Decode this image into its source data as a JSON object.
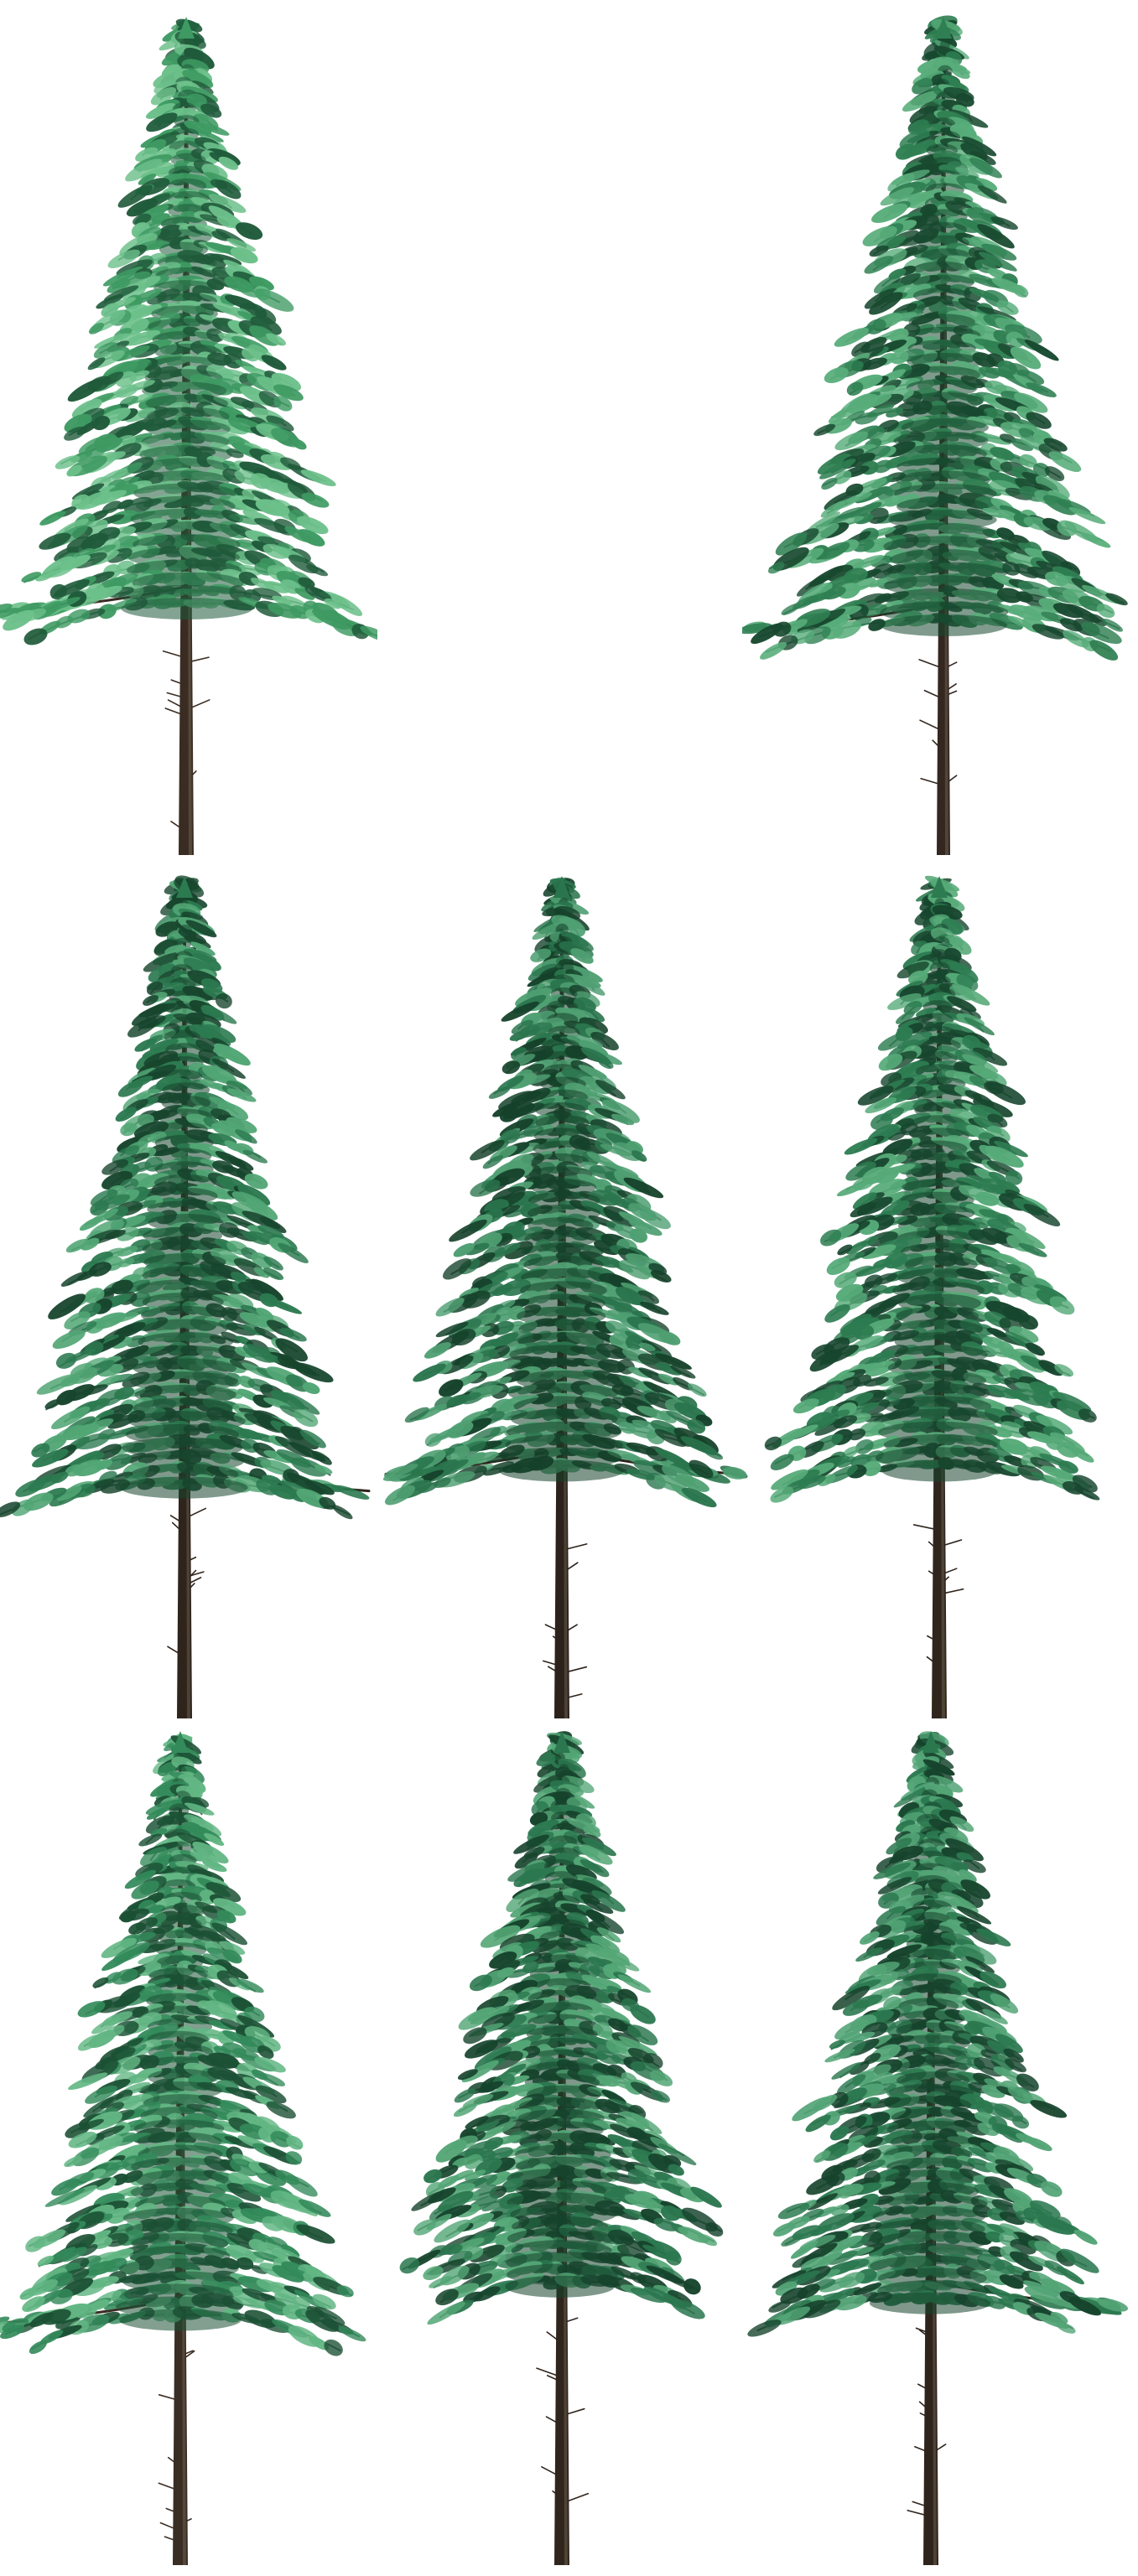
{
  "gallery": {
    "trees": [
      {
        "id": "t1",
        "needle": "#3e9a62",
        "needle_light": "#6cc08a",
        "needle_dark": "#1f5a3a",
        "trunk": "#3a2c22",
        "drooping_branch": "left"
      },
      {
        "id": "t2",
        "needle": "#2f7f52",
        "needle_light": "#58ad7a",
        "needle_dark": "#18492f",
        "trunk": "#33271f",
        "drooping_branch": "left"
      },
      {
        "id": "t3",
        "needle": "#2c7a50",
        "needle_light": "#52a675",
        "needle_dark": "#17452d",
        "trunk": "#2f241c",
        "drooping_branch": "right"
      },
      {
        "id": "t4",
        "needle": "#2a754d",
        "needle_light": "#4f9f72",
        "needle_dark": "#15412a",
        "trunk": "#2c221b",
        "drooping_branch": "both"
      },
      {
        "id": "t5",
        "needle": "#2d7c51",
        "needle_light": "#56aa78",
        "needle_dark": "#17462e",
        "trunk": "#30251d",
        "drooping_branch": "none"
      },
      {
        "id": "t6",
        "needle": "#338a5a",
        "needle_light": "#62b683",
        "needle_dark": "#1b5034",
        "trunk": "#3a2d23",
        "drooping_branch": "left"
      },
      {
        "id": "t7",
        "needle": "#2b774f",
        "needle_light": "#54a676",
        "needle_dark": "#16432c",
        "trunk": "#30251d",
        "drooping_branch": "none"
      },
      {
        "id": "t8",
        "needle": "#2b784f",
        "needle_light": "#53a476",
        "needle_dark": "#16432c",
        "trunk": "#2f241c",
        "drooping_branch": "right"
      }
    ]
  }
}
